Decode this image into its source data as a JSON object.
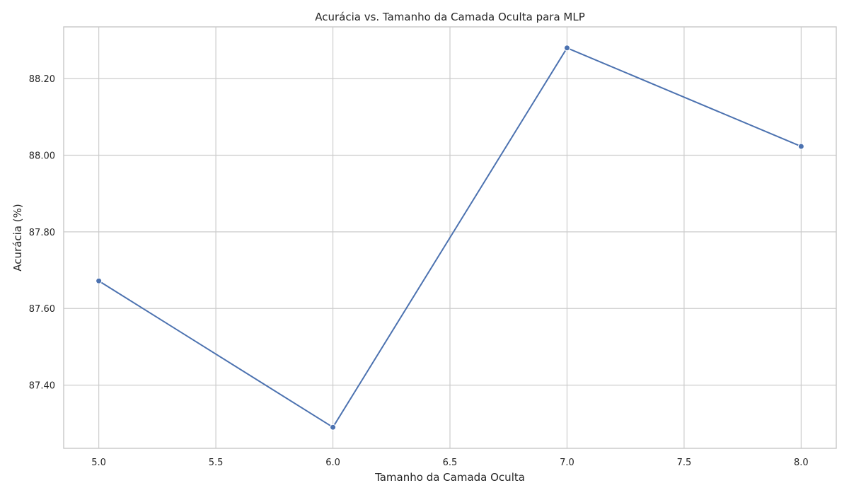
{
  "chart_data": {
    "type": "line",
    "title": "Acurácia vs. Tamanho da Camada Oculta para MLP",
    "xlabel": "Tamanho da Camada Oculta",
    "ylabel": "Acurácia (%)",
    "x": [
      5,
      6,
      7,
      8
    ],
    "series": [
      {
        "values": [
          87.672,
          87.29,
          88.28,
          88.023
        ],
        "color": "#4c72b0",
        "marker": "circle"
      }
    ],
    "xlim": [
      4.85,
      8.15
    ],
    "ylim": [
      87.235,
      88.335
    ],
    "xticks": [
      5.0,
      5.5,
      6.0,
      6.5,
      7.0,
      7.5,
      8.0
    ],
    "xtick_labels": [
      "5.0",
      "5.5",
      "6.0",
      "6.5",
      "7.0",
      "7.5",
      "8.0"
    ],
    "yticks": [
      87.4,
      87.6,
      87.8,
      88.0,
      88.2
    ],
    "ytick_labels": [
      "87.40",
      "87.60",
      "87.80",
      "88.00",
      "88.20"
    ],
    "grid": true,
    "legend": "none"
  }
}
